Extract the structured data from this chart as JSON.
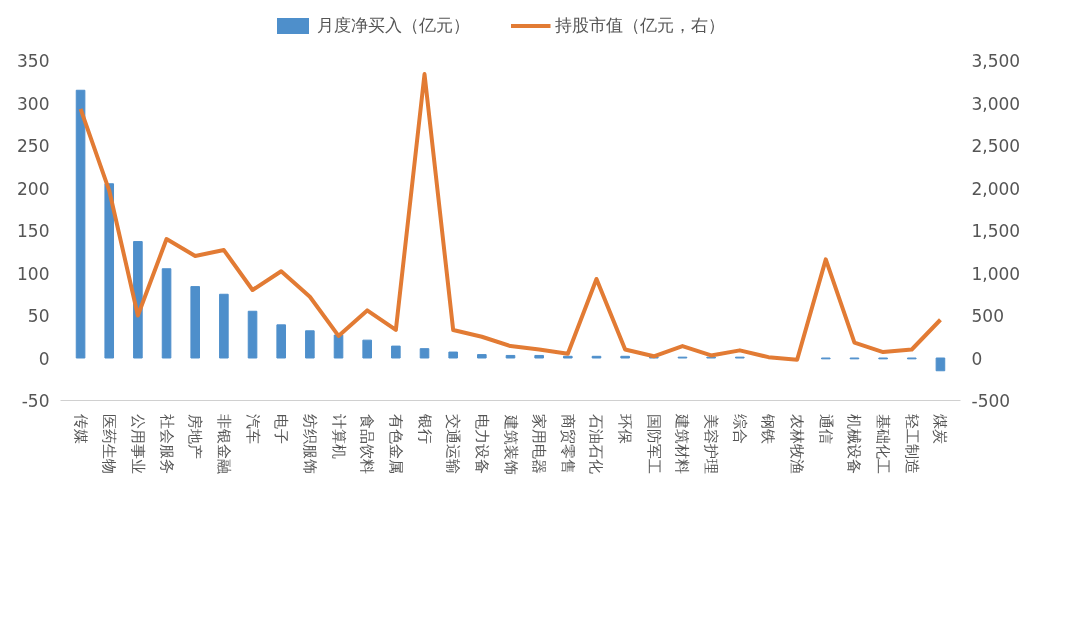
{
  "chart_data": {
    "type": "bar",
    "categories": [
      "传媒",
      "医药生物",
      "公用事业",
      "社会服务",
      "房地产",
      "非银金融",
      "汽车",
      "电子",
      "纺织服饰",
      "计算机",
      "食品饮料",
      "有色金属",
      "银行",
      "交通运输",
      "电力设备",
      "建筑装饰",
      "家用电器",
      "商贸零售",
      "石油石化",
      "环保",
      "国防军工",
      "建筑材料",
      "美容护理",
      "综合",
      "钢铁",
      "农林牧渔",
      "通信",
      "机械设备",
      "基础化工",
      "轻工制造",
      "煤炭"
    ],
    "series": [
      {
        "name": "月度净买入（亿元）",
        "color": "#4e8fcb",
        "values": [
          315,
          205,
          137,
          105,
          84,
          75,
          55,
          39,
          32,
          27,
          21,
          14,
          11,
          7,
          4,
          3,
          3,
          2,
          2,
          2,
          1,
          1,
          1,
          1,
          null,
          null,
          -1,
          -1,
          -1,
          -1,
          -15
        ]
      },
      {
        "name": "持股市值（亿元，右）",
        "type": "line",
        "axis": "y2",
        "color": "#e27b34",
        "values": [
          2930,
          1970,
          500,
          1400,
          1200,
          1270,
          800,
          1020,
          720,
          260,
          560,
          330,
          3340,
          330,
          250,
          140,
          100,
          50,
          930,
          100,
          20,
          140,
          30,
          90,
          10,
          -20,
          1160,
          180,
          70,
          100,
          450
        ]
      }
    ],
    "ylim": [
      -50,
      350
    ],
    "yticks": [
      -50,
      0,
      50,
      100,
      150,
      200,
      250,
      300,
      350
    ],
    "y2lim": [
      -500,
      3500
    ],
    "y2ticks": [
      {
        "value": -500,
        "label": "-500"
      },
      {
        "value": 0,
        "label": "0"
      },
      {
        "value": 500,
        "label": "500"
      },
      {
        "value": 1000,
        "label": "1,000"
      },
      {
        "value": 1500,
        "label": "1,500"
      },
      {
        "value": 2000,
        "label": "2,000"
      },
      {
        "value": 2500,
        "label": "2,500"
      },
      {
        "value": 3000,
        "label": "3,000"
      },
      {
        "value": 3500,
        "label": "3,500"
      }
    ],
    "grid": false,
    "legend": "top"
  }
}
